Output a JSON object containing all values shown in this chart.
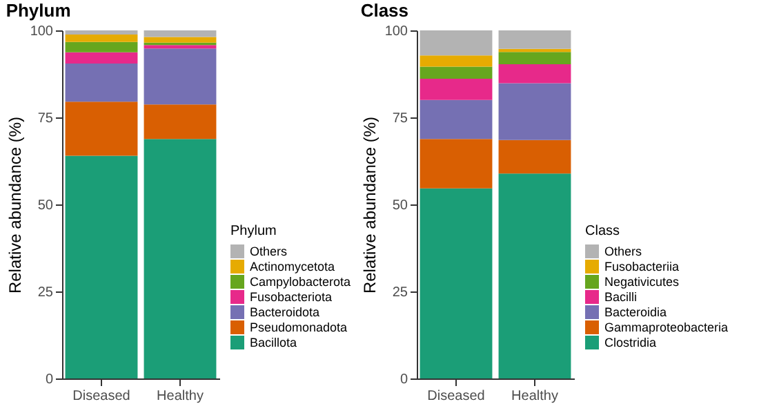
{
  "chart_data": [
    {
      "type": "bar",
      "title": "Phylum",
      "ylabel": "Relative abundance (%)",
      "legend_title": "Phylum",
      "stacked": true,
      "legend": "right",
      "grid": false,
      "categories": [
        "Diseased",
        "Healthy"
      ],
      "ylim": [
        0,
        100
      ],
      "yticks": [
        0,
        25,
        50,
        75,
        100
      ],
      "series": [
        {
          "name": "Bacillota",
          "color": "#1b9e77",
          "values": [
            64.0,
            68.8
          ]
        },
        {
          "name": "Pseudomonadota",
          "color": "#d95f02",
          "values": [
            15.5,
            9.9
          ]
        },
        {
          "name": "Bacteroidota",
          "color": "#7570b3",
          "values": [
            11.0,
            16.1
          ]
        },
        {
          "name": "Fusobacteriota",
          "color": "#e7298a",
          "values": [
            3.2,
            1.0
          ]
        },
        {
          "name": "Campylobacterota",
          "color": "#66a61e",
          "values": [
            3.0,
            0.7
          ]
        },
        {
          "name": "Actinomycetota",
          "color": "#e6ab02",
          "values": [
            2.1,
            1.6
          ]
        },
        {
          "name": "Others",
          "color": "#b3b3b3",
          "values": [
            1.2,
            1.9
          ]
        }
      ]
    },
    {
      "type": "bar",
      "title": "Class",
      "ylabel": "Relative abundance (%)",
      "legend_title": "Class",
      "stacked": true,
      "legend": "right",
      "grid": false,
      "categories": [
        "Diseased",
        "Healthy"
      ],
      "ylim": [
        0,
        100
      ],
      "yticks": [
        0,
        25,
        50,
        75,
        100
      ],
      "series": [
        {
          "name": "Clostridia",
          "color": "#1b9e77",
          "values": [
            54.6,
            58.9
          ]
        },
        {
          "name": "Gammaproteobacteria",
          "color": "#d95f02",
          "values": [
            14.2,
            9.6
          ]
        },
        {
          "name": "Bacteroidia",
          "color": "#7570b3",
          "values": [
            11.2,
            16.3
          ]
        },
        {
          "name": "Bacilli",
          "color": "#e7298a",
          "values": [
            6.1,
            5.5
          ]
        },
        {
          "name": "Negativicutes",
          "color": "#66a61e",
          "values": [
            3.5,
            3.5
          ]
        },
        {
          "name": "Fusobacteriia",
          "color": "#e6ab02",
          "values": [
            3.2,
            0.9
          ]
        },
        {
          "name": "Others",
          "color": "#b3b3b3",
          "values": [
            7.2,
            5.3
          ]
        }
      ]
    }
  ]
}
